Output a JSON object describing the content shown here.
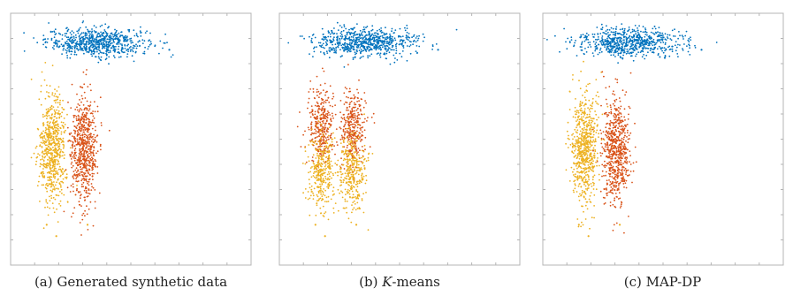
{
  "colors": {
    "blue": "#0072BD",
    "orange": "#D95319",
    "yellow": "#EDB120",
    "axis": "#b4b4b4"
  },
  "chart_data": [
    {
      "type": "scatter",
      "title": "",
      "caption": {
        "prefix": "(a) ",
        "italic": "",
        "rest": "Generated synthetic data"
      },
      "xlabel": "",
      "ylabel": "",
      "grid": false,
      "clusters": [
        {
          "color": "blue",
          "center": [
            3.6,
            8.85
          ],
          "spread": [
            1.05,
            0.28
          ],
          "count": 700
        },
        {
          "color": "yellow",
          "center": [
            1.75,
            4.6
          ],
          "spread": [
            0.28,
            1.05
          ],
          "count": 650
        },
        {
          "color": "orange",
          "center": [
            3.05,
            4.6
          ],
          "spread": [
            0.28,
            1.05
          ],
          "count": 650
        }
      ],
      "outliers": [
        [
          6.6,
          8.55
        ],
        [
          1.5,
          1.6
        ],
        [
          1.9,
          1.15
        ],
        [
          3.2,
          1.6
        ]
      ]
    },
    {
      "type": "scatter",
      "title": "",
      "caption": {
        "prefix": "(b) ",
        "italic": "K",
        "rest": "-means"
      },
      "xlabel": "",
      "ylabel": "",
      "grid": false,
      "clusters": [
        {
          "color": "blue",
          "center": [
            3.6,
            8.85
          ],
          "spread": [
            1.05,
            0.28
          ],
          "count": 700
        },
        {
          "color": "orange",
          "center": [
            1.75,
            5.55
          ],
          "spread": [
            0.28,
            0.75
          ],
          "count": 330
        },
        {
          "color": "yellow",
          "center": [
            1.75,
            3.7
          ],
          "spread": [
            0.28,
            0.75
          ],
          "count": 330
        },
        {
          "color": "orange",
          "center": [
            3.05,
            5.55
          ],
          "spread": [
            0.28,
            0.75
          ],
          "count": 330
        },
        {
          "color": "yellow",
          "center": [
            3.05,
            3.7
          ],
          "spread": [
            0.28,
            0.75
          ],
          "count": 330
        }
      ],
      "outliers": [
        [
          6.6,
          8.55
        ],
        [
          1.5,
          1.6
        ],
        [
          1.9,
          1.15
        ],
        [
          3.2,
          1.6
        ]
      ]
    },
    {
      "type": "scatter",
      "title": "",
      "caption": {
        "prefix": "(c) ",
        "italic": "",
        "rest": "MAP-DP"
      },
      "xlabel": "",
      "ylabel": "",
      "grid": false,
      "clusters": [
        {
          "color": "blue",
          "center": [
            3.6,
            8.85
          ],
          "spread": [
            1.05,
            0.28
          ],
          "count": 700
        },
        {
          "color": "yellow",
          "center": [
            1.75,
            4.6
          ],
          "spread": [
            0.28,
            1.05
          ],
          "count": 650
        },
        {
          "color": "orange",
          "center": [
            3.05,
            4.6
          ],
          "spread": [
            0.28,
            1.05
          ],
          "count": 650
        }
      ],
      "outliers": [
        [
          6.6,
          8.55
        ],
        [
          1.5,
          1.6
        ],
        [
          1.9,
          1.15
        ],
        [
          3.2,
          1.6
        ]
      ]
    }
  ]
}
